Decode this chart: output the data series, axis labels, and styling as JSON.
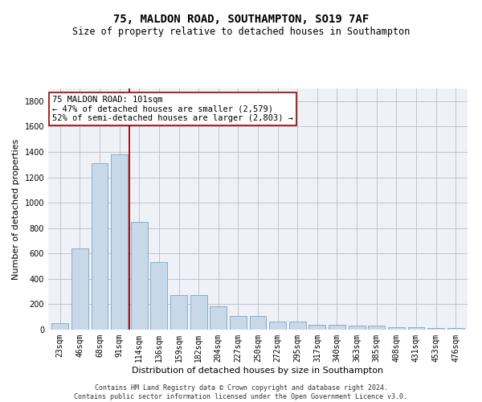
{
  "title_line1": "75, MALDON ROAD, SOUTHAMPTON, SO19 7AF",
  "title_line2": "Size of property relative to detached houses in Southampton",
  "xlabel": "Distribution of detached houses by size in Southampton",
  "ylabel": "Number of detached properties",
  "bar_labels": [
    "23sqm",
    "46sqm",
    "68sqm",
    "91sqm",
    "114sqm",
    "136sqm",
    "159sqm",
    "182sqm",
    "204sqm",
    "227sqm",
    "250sqm",
    "272sqm",
    "295sqm",
    "317sqm",
    "340sqm",
    "363sqm",
    "385sqm",
    "408sqm",
    "431sqm",
    "453sqm",
    "476sqm"
  ],
  "bar_values": [
    50,
    640,
    1310,
    1380,
    850,
    530,
    275,
    275,
    185,
    105,
    105,
    65,
    65,
    40,
    40,
    30,
    30,
    20,
    20,
    12,
    12
  ],
  "bar_color": "#c8d8e8",
  "bar_edge_color": "#6699bb",
  "vline_x": 3.5,
  "vline_color": "#990000",
  "annotation_text": "75 MALDON ROAD: 101sqm\n← 47% of detached houses are smaller (2,579)\n52% of semi-detached houses are larger (2,803) →",
  "annotation_box_color": "#ffffff",
  "annotation_box_edge": "#990000",
  "ylim": [
    0,
    1900
  ],
  "yticks": [
    0,
    200,
    400,
    600,
    800,
    1000,
    1200,
    1400,
    1600,
    1800
  ],
  "grid_color": "#bbbbcc",
  "background_color": "#eef2f7",
  "footer_text": "Contains HM Land Registry data © Crown copyright and database right 2024.\nContains public sector information licensed under the Open Government Licence v3.0.",
  "title_fontsize": 10,
  "subtitle_fontsize": 8.5,
  "axis_label_fontsize": 8,
  "tick_fontsize": 7,
  "annotation_fontsize": 7.5,
  "footer_fontsize": 6
}
